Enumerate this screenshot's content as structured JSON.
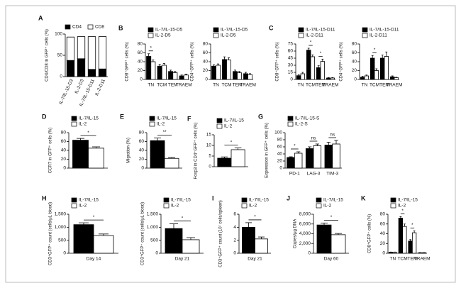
{
  "chart_data": [
    {
      "type": "stacked_bar",
      "label": "A",
      "ylabel": "CD4/CD8 in GFP⁺ cells (%)",
      "categories": [
        "IL-7/IL-15-D3",
        "IL-2-D3",
        "IL-7/IL-15-D11",
        "IL-2-D11"
      ],
      "series": [
        {
          "name": "CD4",
          "color": "#000000",
          "values": [
            38,
            42,
            17,
            18
          ]
        },
        {
          "name": "CD8",
          "color": "#ffffff",
          "values": [
            55,
            52,
            77,
            76
          ]
        }
      ],
      "ylim": [
        0,
        100
      ],
      "yticks": [
        0,
        50,
        100
      ]
    },
    {
      "type": "bar",
      "label": "B",
      "ylabel": "CD8⁺GFP⁺ cells (%)",
      "categories": [
        "TN",
        "TCM",
        "TEM",
        "TRAEM"
      ],
      "series": [
        {
          "name": "IL-7/IL-15-D5",
          "color": "#000000",
          "values": [
            52,
            30,
            18,
            8
          ],
          "errors": [
            6,
            4,
            3,
            2
          ]
        },
        {
          "name": "IL-2-D5",
          "color": "#ffffff",
          "values": [
            40,
            32,
            15,
            10
          ],
          "errors": [
            4,
            4,
            3,
            2
          ]
        }
      ],
      "significance": [
        "*",
        null,
        null,
        null
      ],
      "ylim": [
        0,
        80
      ],
      "yticks": [
        0,
        20,
        40,
        60,
        80
      ]
    },
    {
      "type": "bar",
      "ylabel": "CD4⁺GFP⁺ cells (%)",
      "categories": [
        "TN",
        "TCM",
        "TEM",
        "TRAEM"
      ],
      "series": [
        {
          "name": "IL-7/IL-15-D5",
          "color": "#000000",
          "values": [
            30,
            45,
            18,
            13
          ],
          "errors": [
            3,
            6,
            3,
            3
          ]
        },
        {
          "name": "IL-2-D5",
          "color": "#ffffff",
          "values": [
            32,
            44,
            15,
            11
          ],
          "errors": [
            3,
            5,
            3,
            2
          ]
        }
      ],
      "ylim": [
        0,
        80
      ],
      "yticks": [
        0,
        20,
        40,
        60,
        80
      ]
    },
    {
      "type": "bar",
      "label": "C",
      "ylabel": "CD8⁺GFP⁺ cells (%)",
      "categories": [
        "TN",
        "TCM",
        "TEM",
        "TRAEM"
      ],
      "series": [
        {
          "name": "IL-7/IL-15-D11",
          "color": "#000000",
          "values": [
            8,
            62,
            25,
            3
          ],
          "errors": [
            2,
            4,
            4,
            1
          ]
        },
        {
          "name": "IL-2-D11",
          "color": "#ffffff",
          "values": [
            12,
            48,
            38,
            3
          ],
          "errors": [
            3,
            4,
            5,
            1
          ]
        }
      ],
      "significance": [
        null,
        "*",
        "*",
        null
      ],
      "ylim": [
        0,
        75
      ],
      "yticks": [
        0,
        15,
        30,
        45,
        60,
        75
      ]
    },
    {
      "type": "bar",
      "ylabel": "CD4⁺GFP⁺ cells (%)",
      "categories": [
        "TN",
        "TCM",
        "TEM",
        "TRAEM"
      ],
      "series": [
        {
          "name": "IL-7/IL-15-D11",
          "color": "#000000",
          "values": [
            5,
            48,
            48,
            6
          ],
          "errors": [
            2,
            6,
            7,
            2
          ]
        },
        {
          "name": "IL-2-D11",
          "color": "#ffffff",
          "values": [
            8,
            20,
            52,
            4
          ],
          "errors": [
            2,
            4,
            10,
            1
          ]
        }
      ],
      "significance": [
        null,
        "*",
        null,
        null
      ],
      "ylim": [
        0,
        80
      ],
      "yticks": [
        0,
        20,
        40,
        60,
        80
      ]
    },
    {
      "type": "bar",
      "label": "D",
      "ylabel": "CCR7 in GFP⁺ cells (%)",
      "categories": [
        null
      ],
      "series": [
        {
          "name": "IL-7/IL-15",
          "color": "#000000",
          "values": [
            63
          ],
          "errors": [
            4
          ]
        },
        {
          "name": "IL-2",
          "color": "#ffffff",
          "values": [
            45
          ],
          "errors": [
            3
          ]
        }
      ],
      "significance": [
        "*"
      ],
      "ylim": [
        0,
        80
      ],
      "yticks": [
        0,
        20,
        40,
        60,
        80
      ]
    },
    {
      "type": "bar",
      "label": "E",
      "ylabel": "Migration (%)",
      "categories": [
        null
      ],
      "series": [
        {
          "name": "IL-7/IL-15",
          "color": "#000000",
          "values": [
            62
          ],
          "errors": [
            6
          ]
        },
        {
          "name": "IL-2",
          "color": "#ffffff",
          "values": [
            22
          ],
          "errors": [
            2
          ]
        }
      ],
      "significance": [
        "**"
      ],
      "ylim": [
        0,
        80
      ],
      "yticks": [
        0,
        20,
        40,
        60,
        80
      ]
    },
    {
      "type": "bar",
      "label": "F",
      "ylabel": "Foxp3 in CD4⁺GFP⁺ cells (%)",
      "categories": [
        null
      ],
      "series": [
        {
          "name": "IL-7/IL-15",
          "color": "#000000",
          "values": [
            4
          ],
          "errors": [
            0.6
          ]
        },
        {
          "name": "IL-2",
          "color": "#ffffff",
          "values": [
            8
          ],
          "errors": [
            0.8
          ]
        }
      ],
      "significance": [
        "*"
      ],
      "ylim": [
        0,
        15
      ],
      "yticks": [
        0,
        5,
        10,
        15
      ]
    },
    {
      "type": "bar",
      "label": "G",
      "ylabel": "Expression in GFP⁺ cells (%)",
      "categories": [
        "PD-1",
        "LAG-3",
        "TIM-3"
      ],
      "series": [
        {
          "name": "IL-7/IL-15-S",
          "color": "#000000",
          "values": [
            30,
            55,
            65
          ],
          "errors": [
            2,
            5,
            8
          ]
        },
        {
          "name": "IL-2-S",
          "color": "#ffffff",
          "values": [
            42,
            63,
            68
          ],
          "errors": [
            4,
            5,
            10
          ]
        }
      ],
      "significance": [
        "*",
        "ns",
        "ns"
      ],
      "ylim": [
        0,
        100
      ],
      "yticks": [
        0,
        20,
        40,
        60,
        80,
        100
      ]
    },
    {
      "type": "bar",
      "label": "H",
      "ylabel": "CD3⁺GFP⁺ count (cells/μL blood)",
      "categories": [
        "Day 14"
      ],
      "series": [
        {
          "name": "IL-7/IL-15",
          "color": "#000000",
          "values": [
            1100
          ],
          "errors": [
            70
          ]
        },
        {
          "name": "IL-2",
          "color": "#ffffff",
          "values": [
            680
          ],
          "errors": [
            60
          ]
        }
      ],
      "significance": [
        "*"
      ],
      "ylim": [
        0,
        1500
      ],
      "yticks": [
        0,
        500,
        {
          "value": 1000,
          "label": "1,000"
        },
        {
          "value": 1500,
          "label": "1,500"
        }
      ]
    },
    {
      "type": "bar",
      "ylabel": "CD3⁺GFP⁺ count (cells/μL blood)",
      "categories": [
        "Day 21"
      ],
      "series": [
        {
          "name": "IL-7/IL-15",
          "color": "#000000",
          "values": [
            950
          ],
          "errors": [
            180
          ]
        },
        {
          "name": "IL-2",
          "color": "#ffffff",
          "values": [
            520
          ],
          "errors": [
            80
          ]
        }
      ],
      "significance": [
        "*"
      ],
      "ylim": [
        0,
        1500
      ],
      "yticks": [
        0,
        500,
        {
          "value": 1000,
          "label": "1,000"
        },
        {
          "value": 1500,
          "label": "1,500"
        }
      ]
    },
    {
      "type": "bar",
      "label": "I",
      "ylabel": "CD3⁺GFP⁺ count (10⁷ cells/spleen)",
      "categories": [
        "Day 21"
      ],
      "series": [
        {
          "name": "IL-7/IL-15",
          "color": "#000000",
          "values": [
            4.0
          ],
          "errors": [
            0.7
          ]
        },
        {
          "name": "IL-2",
          "color": "#ffffff",
          "values": [
            2.2
          ],
          "errors": [
            0.3
          ]
        }
      ],
      "significance": [
        "*"
      ],
      "ylim": [
        0,
        6
      ],
      "yticks": [
        0,
        2,
        4,
        6
      ]
    },
    {
      "type": "bar",
      "label": "J",
      "ylabel": "Copies/μg DNA",
      "categories": [
        "Day 60"
      ],
      "series": [
        {
          "name": "IL-7/IL-15",
          "color": "#000000",
          "values": [
            5800
          ],
          "errors": [
            400
          ]
        },
        {
          "name": "IL-2",
          "color": "#ffffff",
          "values": [
            3800
          ],
          "errors": [
            250
          ]
        }
      ],
      "significance": [
        "*"
      ],
      "ylim": [
        0,
        8000
      ],
      "yticks": [
        0,
        {
          "value": 2000,
          "label": "2,000"
        },
        {
          "value": 4000,
          "label": "4,000"
        },
        {
          "value": 6000,
          "label": "6,000"
        },
        {
          "value": 8000,
          "label": "8,000"
        }
      ]
    },
    {
      "type": "bar",
      "label": "K",
      "ylabel": "CD8⁺GFP⁺ cells (%)",
      "categories": [
        "TN",
        "TCM",
        "TEM",
        "TRAEM"
      ],
      "series": [
        {
          "name": "IL-7/IL-15",
          "color": "#000000",
          "values": [
            2,
            72,
            25,
            1
          ],
          "errors": [
            0.5,
            3,
            3,
            0.3
          ]
        },
        {
          "name": "IL-2",
          "color": "#ffffff",
          "values": [
            2,
            55,
            42,
            1
          ],
          "errors": [
            0.5,
            5,
            4,
            0.3
          ]
        }
      ],
      "significance": [
        null,
        "*",
        "*",
        null
      ],
      "ylim": [
        0,
        80
      ],
      "yticks": [
        0,
        20,
        40,
        60,
        80
      ]
    }
  ]
}
